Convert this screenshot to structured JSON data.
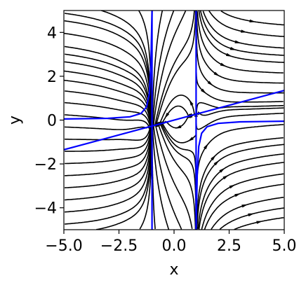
{
  "chart_data": {
    "type": "streamplot",
    "xlabel": "x",
    "ylabel": "y",
    "xlim": [
      -5,
      5
    ],
    "ylim": [
      -5,
      5
    ],
    "xticks": [
      -5,
      -2.5,
      0,
      2.5,
      5
    ],
    "xtick_labels": [
      "−5.0",
      "−2.5",
      "0.0",
      "2.5",
      "5.0"
    ],
    "yticks": [
      -4,
      -2,
      0,
      2,
      4
    ],
    "ytick_labels": [
      "−4",
      "−2",
      "0",
      "2",
      "4"
    ],
    "grid": false,
    "legend": "none",
    "stream_color": "#000000",
    "overlay_color": "#0000ff",
    "overlay_curves": [
      {
        "kind": "vertical",
        "x": -1
      },
      {
        "kind": "vertical",
        "x": 1
      },
      {
        "kind": "line",
        "points": [
          [
            -5,
            -1.35
          ],
          [
            5,
            1.35
          ]
        ]
      },
      {
        "kind": "curve",
        "points": [
          [
            -5,
            0.05
          ],
          [
            -3,
            0.08
          ],
          [
            -2,
            0.15
          ],
          [
            -1.5,
            0.3
          ],
          [
            -1.25,
            0.6
          ],
          [
            -1.12,
            1.2
          ],
          [
            -1.05,
            2.5
          ],
          [
            -1.0,
            5
          ]
        ]
      },
      {
        "kind": "curve",
        "points": [
          [
            1.0,
            -5
          ],
          [
            1.05,
            -2.5
          ],
          [
            1.12,
            -1.2
          ],
          [
            1.25,
            -0.6
          ],
          [
            1.5,
            -0.3
          ],
          [
            2,
            -0.15
          ],
          [
            3,
            -0.08
          ],
          [
            5,
            -0.05
          ]
        ]
      }
    ]
  }
}
